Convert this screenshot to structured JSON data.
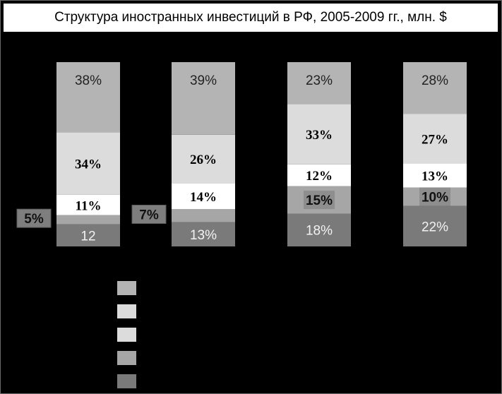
{
  "title": "Структура иностранных инвестиций в РФ, 2005-2009 гг., млн. $",
  "colors": {
    "background": "#000000",
    "segment_bottom": "#7a7a7a",
    "segment_2": "#a6a6a6",
    "segment_3": "#ffffff",
    "segment_4": "#dcdcdc",
    "segment_top": "#b4b4b4",
    "label_box": "#7e7e7e",
    "label_dark_box": "#8e8e8e"
  },
  "chart_data": {
    "type": "bar",
    "stacked": true,
    "normalized": true,
    "title": "Структура иностранных инвестиций в РФ, 2005-2009 гг., млн. $",
    "categories": [
      "",
      "",
      "",
      ""
    ],
    "ylim": [
      0,
      100
    ],
    "grid": false,
    "series": [
      {
        "values": [
          12,
          13,
          18,
          22
        ],
        "labels": [
          "12",
          "13%",
          "18%",
          "22%"
        ]
      },
      {
        "values": [
          5,
          7,
          15,
          10
        ],
        "labels": [
          "5%",
          "7%",
          "15%",
          "10%"
        ]
      },
      {
        "values": [
          11,
          14,
          12,
          13
        ],
        "labels": [
          "11%",
          "14%",
          "12%",
          "13%"
        ]
      },
      {
        "values": [
          34,
          26,
          33,
          27
        ],
        "labels": [
          "34%",
          "26%",
          "33%",
          "27%"
        ]
      },
      {
        "values": [
          38,
          39,
          23,
          28
        ],
        "labels": [
          "38%",
          "39%",
          "23%",
          "28%"
        ]
      }
    ]
  }
}
